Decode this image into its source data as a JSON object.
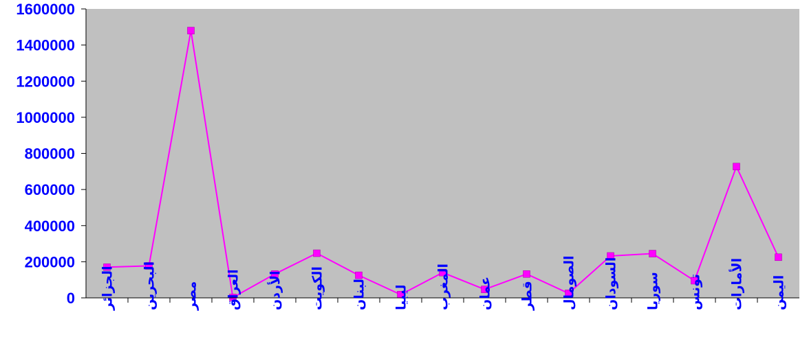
{
  "chart_data": {
    "type": "line",
    "title": "",
    "xlabel": "",
    "ylabel": "",
    "ylim": [
      0,
      1600000
    ],
    "yticks": [
      "0",
      "200000",
      "400000",
      "600000",
      "800000",
      "1000000",
      "1200000",
      "1400000",
      "1600000"
    ],
    "categories": [
      "الجزائر",
      "البحرين",
      "مصر",
      "العراق",
      "الأردن",
      "الكويت",
      "لبنان",
      "ليبيا",
      "المغرب",
      "عمان",
      "قطر",
      "الصومال",
      "السودان",
      "سوريا",
      "تونس",
      "الأمارات",
      "اليمن"
    ],
    "series": [
      {
        "values": [
          170000,
          177000,
          1480000,
          2000,
          132000,
          247000,
          125000,
          18000,
          140000,
          47000,
          132000,
          25000,
          232000,
          245000,
          95000,
          727000,
          225000
        ]
      }
    ],
    "grid": false,
    "legend": "none",
    "colors": {
      "plot_background": "#c0c0c0",
      "line": "#ff00ff",
      "marker": "#ff00ff",
      "text": "#0000ff"
    }
  }
}
